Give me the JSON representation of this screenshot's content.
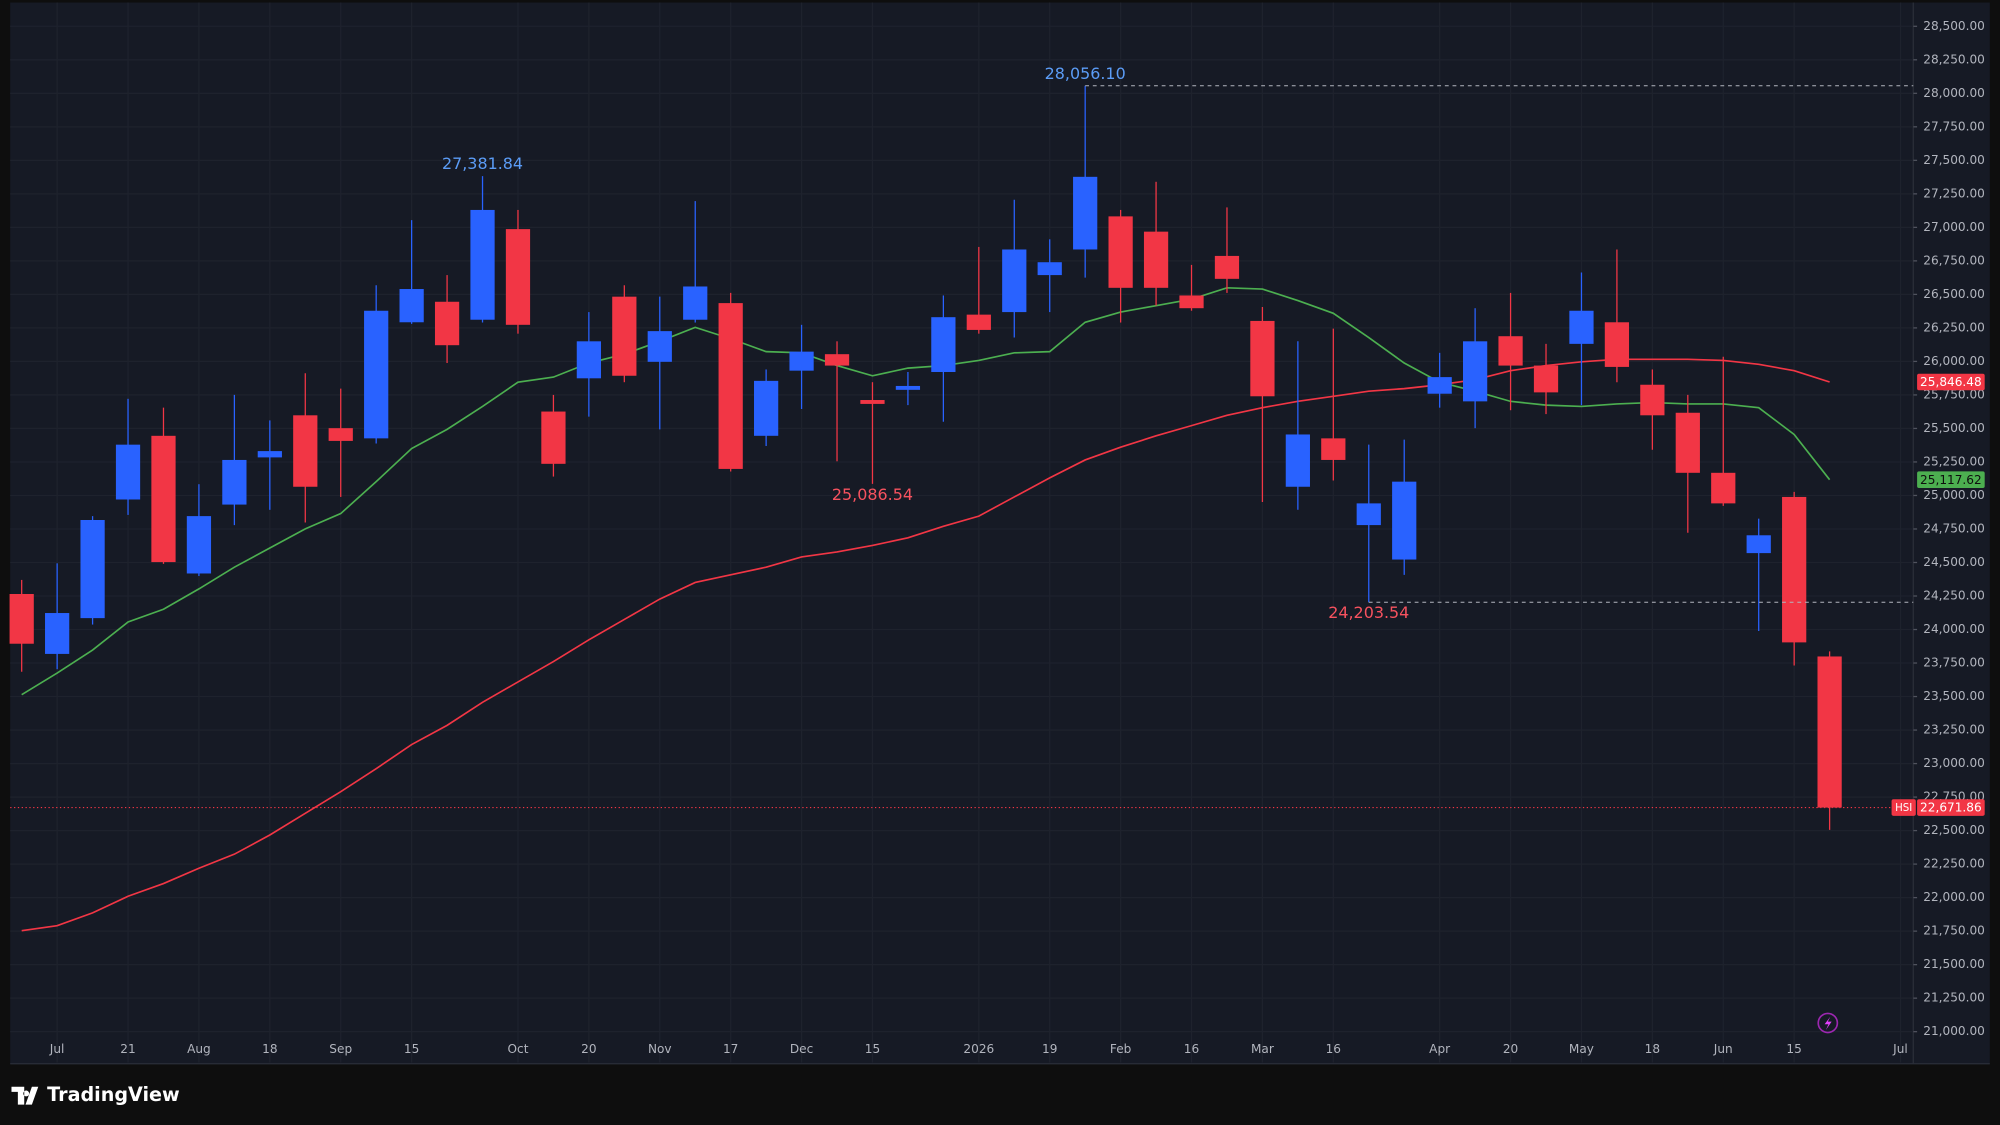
{
  "brand": "TradingView",
  "chart_data": {
    "type": "candlestick",
    "symbol": "HSI",
    "categories": [
      null,
      "Jul",
      null,
      "21",
      null,
      "Aug",
      null,
      "18",
      null,
      "Sep",
      null,
      "15",
      null,
      null,
      "Oct",
      null,
      "20",
      null,
      "Nov",
      null,
      "17",
      null,
      "Dec",
      null,
      "15",
      null,
      null,
      "2026",
      null,
      "19",
      null,
      "Feb",
      null,
      "16",
      null,
      "Mar",
      null,
      "16",
      null,
      null,
      "Apr",
      null,
      "20",
      null,
      "May",
      null,
      "18",
      null,
      "Jun",
      null,
      "15",
      null,
      null,
      "Jul"
    ],
    "open": [
      24265,
      23818,
      24085,
      24970,
      25445,
      24418,
      24932,
      25284,
      25598,
      25502,
      25426,
      26292,
      26445,
      26311,
      26987,
      25626,
      25874,
      26483,
      25997,
      26311,
      26435,
      25445,
      25931,
      26054,
      25712,
      25788,
      25921,
      26349,
      26368,
      26644,
      26835,
      27082,
      26968,
      26492,
      26787,
      26302,
      25065,
      25426,
      24779,
      24522,
      25759,
      25702,
      26188,
      25969,
      26131,
      26292,
      25826,
      25617,
      25169,
      24570,
      24989,
      23799,
      null,
      null
    ],
    "high": [
      24370,
      24494,
      24846,
      25721,
      25655,
      25084,
      25750,
      25560,
      25912,
      25797,
      26568,
      27054,
      26644,
      27381.84,
      27130,
      25750,
      26368,
      26568,
      26483,
      27196,
      26511,
      25940,
      26273,
      26150,
      25845,
      25921,
      26492,
      26854,
      27206,
      26911,
      28056.1,
      27130,
      27340,
      26720,
      27149,
      26406,
      26150,
      26245,
      25379,
      25417,
      26064,
      26397,
      26511,
      26131,
      26663,
      26835,
      25940,
      25750,
      26035,
      24827,
      25027,
      23837,
      null,
      null
    ],
    "low": [
      23685,
      23704,
      24037,
      24855,
      24490,
      24399,
      24779,
      24893,
      24798,
      24989,
      25388,
      26280,
      25988,
      26290,
      26207,
      25141,
      25588,
      25845,
      25493,
      26290,
      25179,
      25369,
      25645,
      25255,
      25086.54,
      25674,
      25550,
      26207,
      26178,
      26368,
      26625,
      26290,
      26416,
      26378,
      26511,
      24951,
      24893,
      25112,
      24203.54,
      24408,
      25655,
      25502,
      25636,
      25607,
      25674,
      25845,
      25341,
      24722,
      24922,
      23989,
      23732,
      22505,
      null,
      null
    ],
    "close": [
      23894,
      24123,
      24817,
      25379,
      24503,
      24846,
      25265,
      25331,
      25065,
      25407,
      26378,
      26540,
      26121,
      27130,
      26273,
      25236,
      26150,
      25893,
      26226,
      26559,
      25198,
      25855,
      26073,
      25969,
      25683,
      25817,
      26330,
      26235,
      26835,
      26740,
      27377,
      26549,
      26549,
      26397,
      26616,
      25740,
      25455,
      25265,
      24941,
      25103,
      25883,
      26150,
      25969,
      25769,
      26378,
      25959,
      25598,
      25169,
      24941,
      24703,
      23904,
      22671.86,
      null,
      null
    ],
    "last_label": "22,671.86",
    "up_color": "#2962ff",
    "down_color": "#f23645",
    "moving_averages": [
      {
        "color": "#4caf50",
        "last_label": "25,117.62",
        "values": [
          23514,
          23675,
          23847,
          24056,
          24151,
          24303,
          24465,
          24608,
          24751,
          24865,
          25103,
          25350,
          25493,
          25664,
          25845,
          25883,
          25988,
          26054,
          26150,
          26254,
          26169,
          26073,
          26064,
          25969,
          25893,
          25950,
          25969,
          26007,
          26064,
          26073,
          26292,
          26368,
          26416,
          26464,
          26549,
          26540,
          26454,
          26359,
          26178,
          25988,
          25845,
          25778,
          25702,
          25674,
          25664,
          25683,
          25693,
          25683,
          25683,
          25655,
          25455,
          25117.62,
          null,
          null
        ]
      },
      {
        "color": "#f23645",
        "last_label": "25,846.48",
        "values": [
          21753,
          21791,
          21886,
          22010,
          22105,
          22219,
          22324,
          22467,
          22629,
          22790,
          22962,
          23142,
          23285,
          23457,
          23609,
          23761,
          23923,
          24075,
          24227,
          24351,
          24408,
          24465,
          24541,
          24579,
          24627,
          24684,
          24770,
          24846,
          24989,
          25131,
          25265,
          25360,
          25445,
          25521,
          25598,
          25655,
          25702,
          25740,
          25778,
          25797,
          25826,
          25864,
          25931,
          25969,
          25997,
          26016,
          26016,
          26016,
          26007,
          25978,
          25931,
          25846.48,
          null,
          null
        ]
      }
    ],
    "annotations": [
      {
        "value": 28056.1,
        "label": "28,056.10"
      },
      {
        "value": 27381.84,
        "label": "27,381.84"
      },
      {
        "value": 25086.54,
        "label": "25,086.54"
      },
      {
        "value": 24203.54,
        "label": "24,203.54"
      }
    ],
    "ylim": [
      20770,
      28620
    ],
    "yticks": [
      {
        "value": 21000,
        "label": "21,000.00"
      },
      {
        "value": 21250,
        "label": "21,250.00"
      },
      {
        "value": 21500,
        "label": "21,500.00"
      },
      {
        "value": 21750,
        "label": "21,750.00"
      },
      {
        "value": 22000,
        "label": "22,000.00"
      },
      {
        "value": 22250,
        "label": "22,250.00"
      },
      {
        "value": 22500,
        "label": "22,500.00"
      },
      {
        "value": 22750,
        "label": "22,750.00"
      },
      {
        "value": 23000,
        "label": "23,000.00"
      },
      {
        "value": 23250,
        "label": "23,250.00"
      },
      {
        "value": 23500,
        "label": "23,500.00"
      },
      {
        "value": 23750,
        "label": "23,750.00"
      },
      {
        "value": 24000,
        "label": "24,000.00"
      },
      {
        "value": 24250,
        "label": "24,250.00"
      },
      {
        "value": 24500,
        "label": "24,500.00"
      },
      {
        "value": 24750,
        "label": "24,750.00"
      },
      {
        "value": 25000,
        "label": "25,000.00"
      },
      {
        "value": 25250,
        "label": "25,250.00"
      },
      {
        "value": 25500,
        "label": "25,500.00"
      },
      {
        "value": 25750,
        "label": "25,750.00"
      },
      {
        "value": 26000,
        "label": "26,000.00"
      },
      {
        "value": 26250,
        "label": "26,250.00"
      },
      {
        "value": 26500,
        "label": "26,500.00"
      },
      {
        "value": 26750,
        "label": "26,750.00"
      },
      {
        "value": 27000,
        "label": "27,000.00"
      },
      {
        "value": 27250,
        "label": "27,250.00"
      },
      {
        "value": 27500,
        "label": "27,500.00"
      },
      {
        "value": 27750,
        "label": "27,750.00"
      },
      {
        "value": 28000,
        "label": "28,000.00"
      },
      {
        "value": 28250,
        "label": "28,250.00"
      },
      {
        "value": 28500,
        "label": "28,500.00"
      }
    ],
    "grid": true
  }
}
